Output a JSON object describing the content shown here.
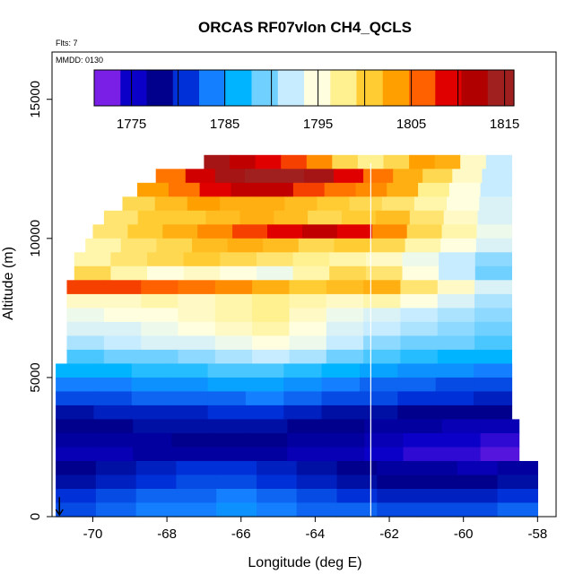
{
  "chart_data": {
    "type": "heatmap",
    "title": "ORCAS RF07vlon CH4_QCLS",
    "notes": [
      "Flts: 7",
      "MMDD: 0130"
    ],
    "xlabel": "Longitude (deg E)",
    "ylabel": "Altitude (m)",
    "xlim": [
      -71.1,
      -57.5
    ],
    "ylim": [
      0,
      16700
    ],
    "xticks": [
      -70,
      -68,
      -66,
      -64,
      -62,
      -60,
      -58
    ],
    "yticks": [
      0,
      5000,
      10000,
      15000
    ],
    "colorbar": {
      "range": [
        1771,
        1816
      ],
      "ticks": [
        1775,
        1785,
        1795,
        1805,
        1815
      ],
      "colors": [
        "#7a1fe6",
        "#0a00c8",
        "#00008c",
        "#0030d8",
        "#1480ff",
        "#00b4ff",
        "#70d0ff",
        "#c8ecff",
        "#ffffe0",
        "#fff090",
        "#ffcc33",
        "#ffa000",
        "#ff6000",
        "#e00000",
        "#b00000",
        "#a02020"
      ]
    },
    "grid": false,
    "flight_track_longitude": -62.5,
    "surface_marker_longitude": -70.9,
    "profile_rows": [
      {
        "alt": 12500,
        "lon_start": -67.0,
        "lon_end": -58.7,
        "values": [
          1815,
          1812,
          1810,
          1808,
          1805,
          1800,
          1798,
          1800,
          1804,
          1803,
          1796,
          1792
        ]
      },
      {
        "alt": 12000,
        "lon_start": -68.3,
        "lon_end": -58.7,
        "values": [
          1806,
          1811,
          1815,
          1816,
          1816,
          1815,
          1810,
          1806,
          1803,
          1800,
          1796,
          1792
        ]
      },
      {
        "alt": 11500,
        "lon_start": -68.8,
        "lon_end": -58.7,
        "values": [
          1804,
          1806,
          1810,
          1812,
          1812,
          1808,
          1806,
          1805,
          1803,
          1798,
          1795,
          1792
        ]
      },
      {
        "alt": 11000,
        "lon_start": -69.2,
        "lon_end": -58.7,
        "values": [
          1800,
          1802,
          1804,
          1803,
          1803,
          1802,
          1801,
          1800,
          1799,
          1797,
          1795,
          1793
        ]
      },
      {
        "alt": 10500,
        "lon_start": -69.7,
        "lon_end": -58.7,
        "values": [
          1799,
          1801,
          1801,
          1802,
          1803,
          1802,
          1800,
          1801,
          1802,
          1799,
          1796,
          1793
        ]
      },
      {
        "alt": 10000,
        "lon_start": -70.0,
        "lon_end": -58.7,
        "values": [
          1799,
          1801,
          1803,
          1805,
          1808,
          1810,
          1812,
          1810,
          1805,
          1800,
          1797,
          1794
        ]
      },
      {
        "alt": 9500,
        "lon_start": -70.2,
        "lon_end": -58.7,
        "values": [
          1797,
          1799,
          1800,
          1802,
          1803,
          1802,
          1800,
          1801,
          1800,
          1797,
          1795,
          1793
        ]
      },
      {
        "alt": 9000,
        "lon_start": -70.5,
        "lon_end": -58.7,
        "values": [
          1797,
          1799,
          1800,
          1801,
          1800,
          1799,
          1798,
          1797,
          1796,
          1794,
          1792,
          1790
        ]
      },
      {
        "alt": 8500,
        "lon_start": -70.5,
        "lon_end": -58.7,
        "values": [
          1800,
          1797,
          1795,
          1796,
          1795,
          1794,
          1797,
          1800,
          1799,
          1795,
          1792,
          1789
        ]
      },
      {
        "alt": 8000,
        "lon_start": -70.7,
        "lon_end": -58.7,
        "values": [
          1808,
          1808,
          1807,
          1806,
          1805,
          1803,
          1801,
          1802,
          1803,
          1799,
          1796,
          1793
        ]
      },
      {
        "alt": 7500,
        "lon_start": -70.7,
        "lon_end": -58.7,
        "values": [
          1796,
          1796,
          1797,
          1796,
          1797,
          1798,
          1797,
          1796,
          1797,
          1795,
          1793,
          1791
        ]
      },
      {
        "alt": 7000,
        "lon_start": -70.7,
        "lon_end": -58.7,
        "values": [
          1794,
          1795,
          1795,
          1796,
          1797,
          1798,
          1796,
          1794,
          1793,
          1792,
          1791,
          1790
        ]
      },
      {
        "alt": 6500,
        "lon_start": -70.7,
        "lon_end": -58.7,
        "values": [
          1793,
          1793,
          1794,
          1795,
          1796,
          1797,
          1795,
          1793,
          1792,
          1791,
          1790,
          1789
        ]
      },
      {
        "alt": 6000,
        "lon_start": -70.7,
        "lon_end": -58.7,
        "values": [
          1791,
          1792,
          1793,
          1793,
          1794,
          1795,
          1794,
          1792,
          1790,
          1789,
          1789,
          1788
        ]
      },
      {
        "alt": 5500,
        "lon_start": -70.7,
        "lon_end": -58.7,
        "values": [
          1788,
          1789,
          1789,
          1790,
          1791,
          1792,
          1791,
          1789,
          1788,
          1787,
          1786,
          1786
        ]
      },
      {
        "alt": 5000,
        "lon_start": -71.0,
        "lon_end": -58.7,
        "values": [
          1786,
          1786,
          1787,
          1787,
          1788,
          1788,
          1787,
          1786,
          1785,
          1784,
          1784,
          1783
        ]
      },
      {
        "alt": 4500,
        "lon_start": -71.0,
        "lon_end": -58.7,
        "values": [
          1783,
          1783,
          1784,
          1784,
          1785,
          1785,
          1784,
          1783,
          1782,
          1782,
          1781,
          1781
        ]
      },
      {
        "alt": 4000,
        "lon_start": -71.0,
        "lon_end": -58.7,
        "values": [
          1781,
          1781,
          1782,
          1782,
          1782,
          1783,
          1782,
          1781,
          1781,
          1780,
          1780,
          1779
        ]
      },
      {
        "alt": 3500,
        "lon_start": -71.0,
        "lon_end": -58.7,
        "values": [
          1778,
          1779,
          1779,
          1779,
          1780,
          1780,
          1779,
          1778,
          1778,
          1777,
          1777,
          1777
        ]
      },
      {
        "alt": 3000,
        "lon_start": -71.0,
        "lon_end": -58.5,
        "values": [
          1777,
          1777,
          1778,
          1778,
          1778,
          1778,
          1777,
          1777,
          1776,
          1776,
          1775,
          1775
        ]
      },
      {
        "alt": 2500,
        "lon_start": -71.0,
        "lon_end": -58.5,
        "values": [
          1776,
          1776,
          1776,
          1777,
          1777,
          1777,
          1776,
          1776,
          1775,
          1774,
          1774,
          1773
        ]
      },
      {
        "alt": 2000,
        "lon_start": -71.0,
        "lon_end": -58.5,
        "values": [
          1775,
          1775,
          1776,
          1776,
          1776,
          1776,
          1775,
          1775,
          1774,
          1773,
          1773,
          1772
        ]
      },
      {
        "alt": 1500,
        "lon_start": -71.0,
        "lon_end": -58.0,
        "values": [
          1777,
          1778,
          1779,
          1780,
          1780,
          1779,
          1778,
          1777,
          1776,
          1776,
          1775,
          1776
        ]
      },
      {
        "alt": 1000,
        "lon_start": -71.0,
        "lon_end": -58.0,
        "values": [
          1778,
          1779,
          1780,
          1781,
          1781,
          1780,
          1779,
          1778,
          1777,
          1777,
          1777,
          1778
        ]
      },
      {
        "alt": 500,
        "lon_start": -71.0,
        "lon_end": -58.0,
        "values": [
          1780,
          1781,
          1782,
          1782,
          1783,
          1782,
          1781,
          1780,
          1779,
          1779,
          1779,
          1780
        ]
      },
      {
        "alt": 0,
        "lon_start": -71.0,
        "lon_end": -58.0,
        "values": [
          1781,
          1782,
          1783,
          1783,
          1784,
          1783,
          1782,
          1782,
          1781,
          1781,
          1781,
          1782
        ]
      }
    ]
  }
}
